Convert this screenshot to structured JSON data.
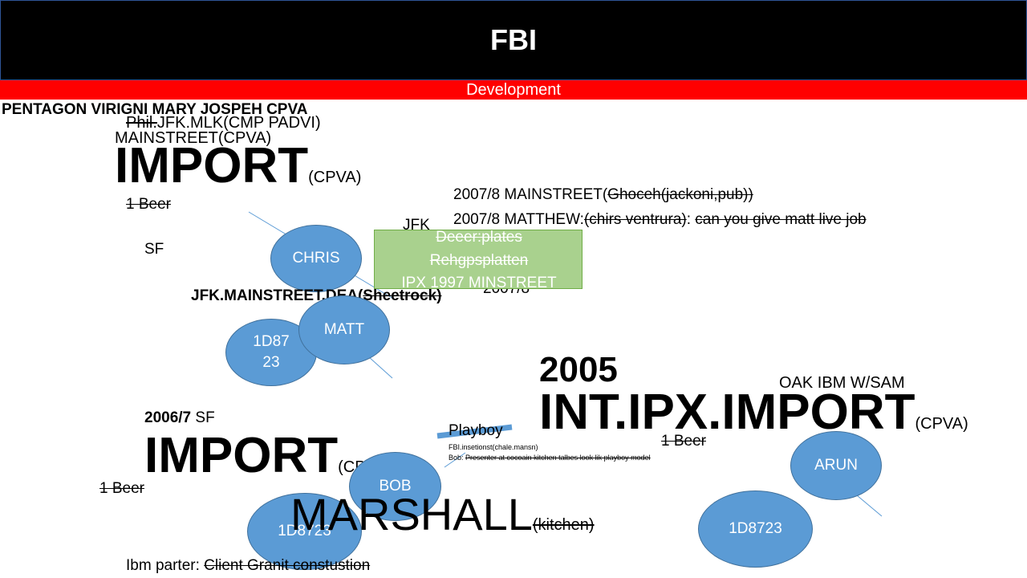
{
  "header": {
    "title": "FBI",
    "band": "Development"
  },
  "top": {
    "pentagon": "PENTAGON VIRIGNI  MARY JOSPEH CPVA",
    "phil_strike": "Phil.",
    "phil_rest": "JFK.MLK(CMP PADVI)",
    "mainstreet": "MAINSTREET(CPVA)",
    "import": "IMPORT",
    "import_sub": "(CPVA)",
    "beer": "1 Beer",
    "sf": "SF",
    "jfk": "JFK"
  },
  "notes": {
    "line1_prefix": "2007/8 MAINSTREET(",
    "line1_strike": "Ghoceh(jackoni,pub))",
    "line2_prefix": "2007/8 MATTHEW:",
    "line2_strike1": "(chirs ventrura)",
    "line2_colon": ": ",
    "line2_strike2": "can you give matt live job"
  },
  "greenbox": {
    "line1": "Deeer:plates",
    "line2": "Rehgpsplatten",
    "line3": "IPX 1997 MINSTREET",
    "behind": "2007/8"
  },
  "jfk_mainstreet": {
    "prefix": "JFK.MAINSTREET.DEA(",
    "strike": "Sheetrock)"
  },
  "circles": {
    "chris": "CHRIS",
    "matt": "MATT",
    "id_left_line1": "1D87",
    "id_left_line2": "23",
    "bob": "BOB",
    "id_bottom": "1D8723",
    "arun": "ARUN",
    "id_right": "1D8723"
  },
  "right": {
    "year": "2005",
    "oak": "OAK IBM W/SAM",
    "intipx": "INT.IPX.IMPORT",
    "intipx_sub": "(CPVA)",
    "beer": "1 Beer"
  },
  "left_bottom": {
    "year": "2006/7",
    "sf": " SF",
    "import": "IMPORT",
    "import_sub": "(CPVA)",
    "beer": "1 Beer",
    "marshall": "MARSHALL",
    "marshall_sub": "(kitchen)",
    "ibm_prefix": "Ibm parter: ",
    "ibm_strike": "Client Granit constustion"
  },
  "playboy": {
    "label": "Playboy",
    "note1": "FBI.insetionst(chale.mansn)",
    "note2_prefix": "Bob: ",
    "note2_strike": "Presenter at cocoain kitchen talbes look lik playboy model"
  },
  "colors": {
    "header_bg": "#000000",
    "band_bg": "#ff0000",
    "circle": "#5b9bd5",
    "green": "#a9d18e"
  }
}
